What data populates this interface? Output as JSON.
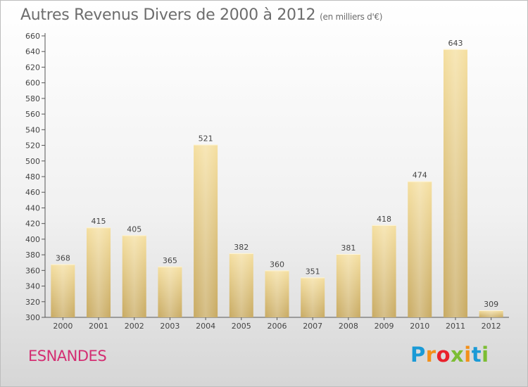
{
  "header": {
    "title": "Autres Revenus Divers de 2000 à 2012",
    "subtitle": "(en milliers d'€)"
  },
  "footer": {
    "town": "ESNANDES",
    "brand_letters": [
      "P",
      "r",
      "o",
      "x",
      "i",
      "t",
      "i"
    ],
    "brand_colors": [
      "#1a9ad6",
      "#f39019",
      "#e9212b",
      "#7cbd33",
      "#f39019",
      "#1a9ad6",
      "#7cbd33"
    ]
  },
  "colors": {
    "bar_light": "#f5dfa0",
    "bar_dark": "#c8aa62",
    "town": "#d42e72",
    "text": "#555555"
  },
  "chart_data": {
    "type": "bar",
    "title": "Autres Revenus Divers de 2000 à 2012",
    "subtitle": "(en milliers d'€)",
    "categories": [
      "2000",
      "2001",
      "2002",
      "2003",
      "2004",
      "2005",
      "2006",
      "2007",
      "2008",
      "2009",
      "2010",
      "2011",
      "2012"
    ],
    "values": [
      368,
      415,
      405,
      365,
      521,
      382,
      360,
      351,
      381,
      418,
      474,
      643,
      309
    ],
    "ylim": [
      300,
      660
    ],
    "yticks": [
      300,
      320,
      340,
      360,
      380,
      400,
      420,
      440,
      460,
      480,
      500,
      520,
      540,
      560,
      580,
      600,
      620,
      640,
      660
    ],
    "grid": false,
    "xlabel": "",
    "ylabel": ""
  }
}
